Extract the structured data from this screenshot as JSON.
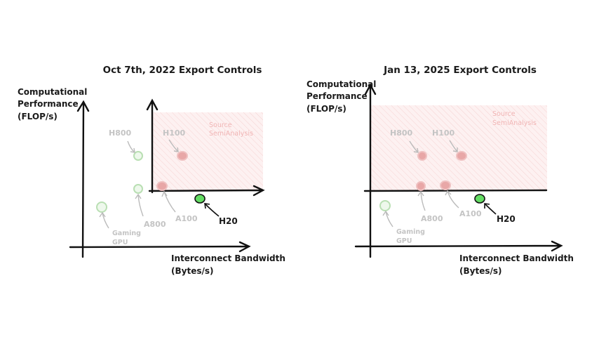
{
  "panels": [
    {
      "title": "Oct 7th, 2022 Export Controls",
      "y_axis_label": [
        "Computational",
        "Performance",
        "(FLOP/s)"
      ],
      "x_axis_label": [
        "Interconnect Bandwidth",
        "(Bytes/s)"
      ],
      "source": [
        "Source",
        "SemiAnalysis"
      ],
      "chips": [
        "H800",
        "H100",
        "A800",
        "A100",
        "H20",
        [
          "Gaming",
          "GPU"
        ]
      ]
    },
    {
      "title": "Jan 13, 2025 Export Controls",
      "y_axis_label": [
        "Computational",
        "Performance",
        "(FLOP/s)"
      ],
      "x_axis_label": [
        "Interconnect Bandwidth",
        "(Bytes/s)"
      ],
      "source": [
        "Source",
        "SemiAnalysis"
      ],
      "chips": [
        "H800",
        "H100",
        "A800",
        "A100",
        "H20",
        [
          "Gaming",
          "GPU"
        ]
      ]
    }
  ]
}
